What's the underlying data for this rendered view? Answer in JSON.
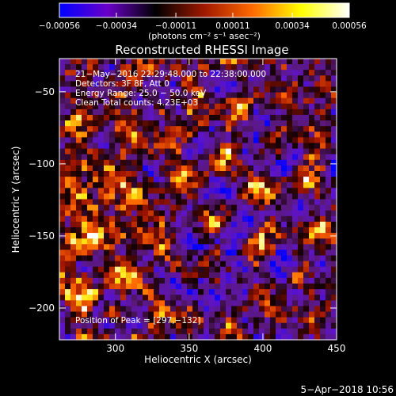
{
  "chart_data": {
    "type": "heatmap",
    "title": "Reconstructed RHESSI Image",
    "xlabel": "Heliocentric X (arcsec)",
    "ylabel": "Heliocentric Y (arcsec)",
    "xlim": [
      262,
      450
    ],
    "ylim": [
      -222,
      -27
    ],
    "xticks": [
      300,
      350,
      400,
      450
    ],
    "yticks": [
      -50,
      -100,
      -150,
      -200
    ],
    "xtick_labels": [
      "300",
      "350",
      "400",
      "450"
    ],
    "ytick_labels": [
      "−50",
      "−100",
      "−150",
      "−200"
    ],
    "colorbar": {
      "ticks": [
        -0.00056,
        -0.00034,
        -0.00011,
        0.00011,
        0.00034,
        0.00056
      ],
      "tick_labels": [
        "−0.00056",
        "−0.00034",
        "−0.00011",
        "0.00011",
        "0.00034",
        "0.00056"
      ],
      "unit_label": "(photons cm⁻² s⁻¹ asec⁻²)",
      "range": [
        -0.00056,
        0.00056
      ],
      "colors": [
        "#0000ff",
        "#6a00c8",
        "#000000",
        "#a01800",
        "#ff6a00",
        "#ffff00",
        "#ffffff"
      ]
    },
    "annotations": [
      "21−May−2016 22:29:48.000 to 22:38:00.000",
      "Detectors: 3F 8F, Att 0",
      "Energy Range: 25.0 − 50.0 keV",
      "Clean     Total counts: 4.23E+03"
    ],
    "peak_label": "Position of Peak = [297,−132]",
    "peak_position": [
      297,
      -132
    ]
  },
  "footer": {
    "timestamp": "5−Apr−2018 10:56"
  }
}
